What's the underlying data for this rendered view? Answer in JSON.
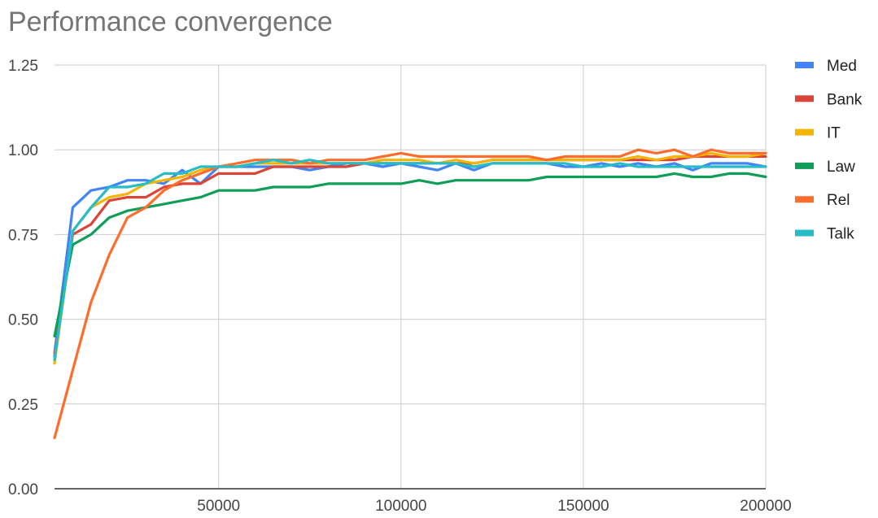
{
  "chart_data": {
    "type": "line",
    "title": "Performance convergence",
    "xlabel": "",
    "ylabel": "",
    "xlim": [
      5000,
      200000
    ],
    "ylim": [
      0,
      1.25
    ],
    "x_ticks": [
      50000,
      100000,
      150000,
      200000
    ],
    "x_tick_labels": [
      "50000",
      "100000",
      "150000",
      "200000"
    ],
    "y_ticks": [
      0,
      0.25,
      0.5,
      0.75,
      1.0,
      1.25
    ],
    "y_tick_labels": [
      "0.00",
      "0.25",
      "0.50",
      "0.75",
      "1.00",
      "1.25"
    ],
    "grid": true,
    "legend_position": "right",
    "x": [
      5000,
      10000,
      15000,
      20000,
      25000,
      30000,
      35000,
      40000,
      45000,
      50000,
      55000,
      60000,
      65000,
      70000,
      75000,
      80000,
      85000,
      90000,
      95000,
      100000,
      105000,
      110000,
      115000,
      120000,
      125000,
      130000,
      135000,
      140000,
      145000,
      150000,
      155000,
      160000,
      165000,
      170000,
      175000,
      180000,
      185000,
      190000,
      195000,
      200000
    ],
    "series": [
      {
        "name": "Med",
        "color": "#4285F4",
        "values": [
          0.4,
          0.83,
          0.88,
          0.89,
          0.91,
          0.91,
          0.9,
          0.94,
          0.9,
          0.95,
          0.95,
          0.95,
          0.95,
          0.95,
          0.94,
          0.95,
          0.96,
          0.96,
          0.95,
          0.96,
          0.95,
          0.94,
          0.96,
          0.94,
          0.96,
          0.96,
          0.96,
          0.96,
          0.95,
          0.95,
          0.96,
          0.95,
          0.96,
          0.95,
          0.96,
          0.94,
          0.96,
          0.96,
          0.96,
          0.95
        ]
      },
      {
        "name": "Bank",
        "color": "#DB4437",
        "values": [
          0.39,
          0.75,
          0.78,
          0.85,
          0.86,
          0.86,
          0.89,
          0.9,
          0.9,
          0.93,
          0.93,
          0.93,
          0.95,
          0.95,
          0.95,
          0.95,
          0.95,
          0.96,
          0.96,
          0.96,
          0.96,
          0.96,
          0.96,
          0.96,
          0.97,
          0.97,
          0.97,
          0.97,
          0.97,
          0.97,
          0.97,
          0.97,
          0.97,
          0.97,
          0.97,
          0.98,
          0.98,
          0.98,
          0.98,
          0.98
        ]
      },
      {
        "name": "IT",
        "color": "#F4B400",
        "values": [
          0.37,
          0.76,
          0.83,
          0.86,
          0.87,
          0.9,
          0.91,
          0.92,
          0.94,
          0.95,
          0.95,
          0.96,
          0.96,
          0.96,
          0.96,
          0.96,
          0.96,
          0.96,
          0.97,
          0.97,
          0.97,
          0.96,
          0.97,
          0.96,
          0.97,
          0.97,
          0.97,
          0.97,
          0.97,
          0.97,
          0.97,
          0.97,
          0.98,
          0.97,
          0.98,
          0.98,
          0.99,
          0.98,
          0.98,
          0.99
        ]
      },
      {
        "name": "Law",
        "color": "#0F9D58",
        "values": [
          0.45,
          0.72,
          0.75,
          0.8,
          0.82,
          0.83,
          0.84,
          0.85,
          0.86,
          0.88,
          0.88,
          0.88,
          0.89,
          0.89,
          0.89,
          0.9,
          0.9,
          0.9,
          0.9,
          0.9,
          0.91,
          0.9,
          0.91,
          0.91,
          0.91,
          0.91,
          0.91,
          0.92,
          0.92,
          0.92,
          0.92,
          0.92,
          0.92,
          0.92,
          0.93,
          0.92,
          0.92,
          0.93,
          0.93,
          0.92
        ]
      },
      {
        "name": "Rel",
        "color": "#FF6D2C",
        "values": [
          0.15,
          0.35,
          0.55,
          0.69,
          0.8,
          0.83,
          0.88,
          0.91,
          0.93,
          0.95,
          0.96,
          0.97,
          0.97,
          0.97,
          0.96,
          0.97,
          0.97,
          0.97,
          0.98,
          0.99,
          0.98,
          0.98,
          0.98,
          0.98,
          0.98,
          0.98,
          0.98,
          0.97,
          0.98,
          0.98,
          0.98,
          0.98,
          1.0,
          0.99,
          1.0,
          0.98,
          1.0,
          0.99,
          0.99,
          0.99
        ]
      },
      {
        "name": "Talk",
        "color": "#26BDC6",
        "values": [
          0.38,
          0.76,
          0.83,
          0.89,
          0.89,
          0.9,
          0.93,
          0.93,
          0.95,
          0.95,
          0.95,
          0.96,
          0.97,
          0.96,
          0.97,
          0.96,
          0.96,
          0.96,
          0.96,
          0.96,
          0.96,
          0.96,
          0.96,
          0.95,
          0.96,
          0.96,
          0.96,
          0.96,
          0.96,
          0.95,
          0.95,
          0.96,
          0.95,
          0.95,
          0.95,
          0.95,
          0.95,
          0.95,
          0.95,
          0.95
        ]
      }
    ]
  }
}
